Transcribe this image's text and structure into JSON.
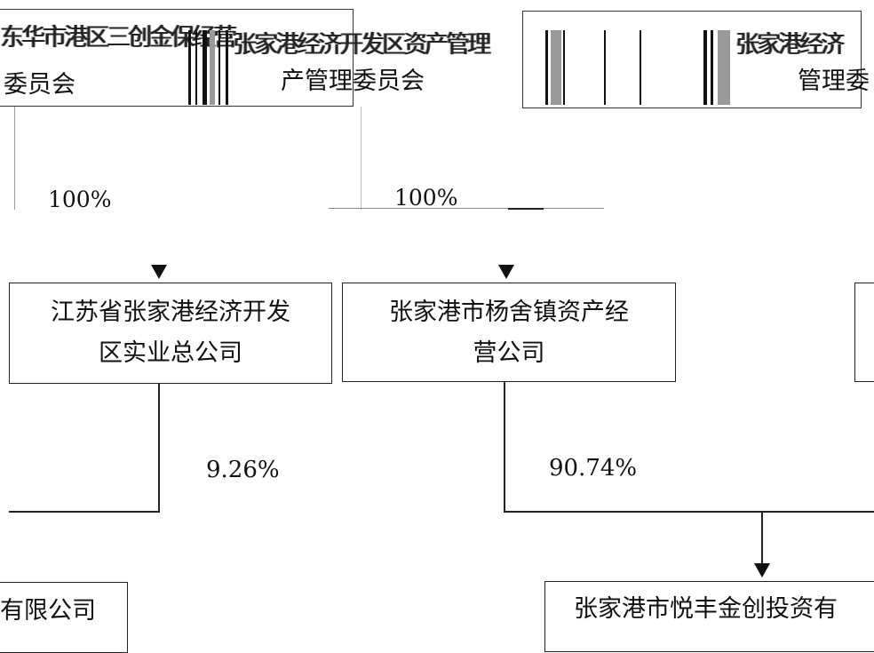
{
  "top_row": {
    "left_label_line1_fragment": "东华市港区三创金保经营",
    "left_label_line2": "委员会",
    "middle_label_line1_fragment": "张家港经济开发区资产管理",
    "middle_label_line2": "产管理委员会",
    "right_label_line1_fragment": "张家港经济",
    "right_label_line2": "管理委"
  },
  "percentages": {
    "left_top": "100%",
    "middle_top": "100%",
    "kaifaqu_to_target": "9.26%",
    "yangshe_to_target": "90.74%"
  },
  "entities": {
    "kaifaqu_line1": "江苏省张家港经济开发",
    "kaifaqu_line2": "区实业总公司",
    "yangshe_line1": "张家港市杨舍镇资产经",
    "yangshe_line2": "营公司",
    "bottom_left_fragment": "有限公司",
    "bottom_right_fragment": "张家港市悦丰金创投资有"
  }
}
